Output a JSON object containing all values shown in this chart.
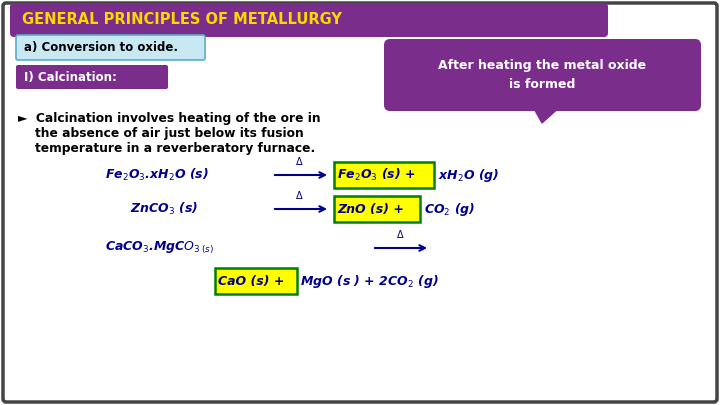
{
  "title": "GENERAL PRINCIPLES OF METALLURGY",
  "title_bg": "#7B2D8B",
  "title_color": "#FFD700",
  "bg_color": "#FFFFFF",
  "border_color": "#333333",
  "section_a_text": "a) Conversion to oxide.",
  "section_a_bg": "#C8E8F4",
  "section_a_border": "#5AACCA",
  "section_i_text": "I) Calcination:",
  "section_i_bg": "#7B2D8B",
  "section_i_color": "#FFFFFF",
  "callout_text": "After heating the metal oxide\nis formed",
  "callout_bg": "#7B2D8B",
  "callout_color": "#FFFFFF",
  "bullet_text1": "►  Calcination involves heating of the ore in",
  "bullet_text2": "    the absence of air just below its fusion",
  "bullet_text3": "    temperature in a reverberatory furnace.",
  "highlight_color": "#FFFF00",
  "highlight_border": "#008000",
  "eq_color": "#00008B"
}
